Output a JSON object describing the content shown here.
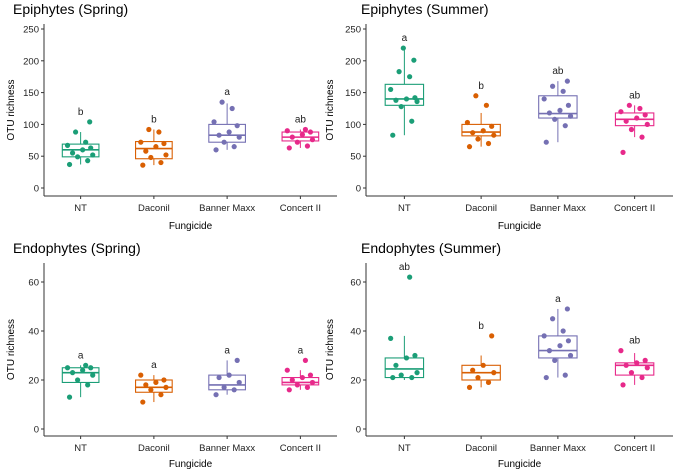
{
  "chart_data": [
    {
      "type": "boxplot",
      "title": "Epiphytes (Spring)",
      "xlabel": "Fungicide",
      "ylabel": "OTU richness",
      "ylim": [
        0,
        250
      ],
      "yticks": [
        0,
        50,
        100,
        150,
        200,
        250
      ],
      "categories": [
        "NT",
        "Daconil",
        "Banner  Maxx",
        "Concert  II"
      ],
      "boxes": [
        {
          "q1": 49,
          "median": 60,
          "q3": 69,
          "whisker_low": 37,
          "whisker_high": 88,
          "outliers": [],
          "letter": "b",
          "points": [
            37,
            43,
            49,
            52,
            55,
            60,
            63,
            67,
            72,
            88,
            104
          ]
        },
        {
          "q1": 46,
          "median": 62,
          "q3": 73,
          "whisker_low": 36,
          "whisker_high": 92,
          "outliers": [],
          "letter": "b",
          "points": [
            36,
            40,
            48,
            52,
            58,
            65,
            70,
            72,
            88,
            92
          ]
        },
        {
          "q1": 72,
          "median": 83,
          "q3": 100,
          "whisker_low": 60,
          "whisker_high": 133,
          "outliers": [],
          "letter": "a",
          "points": [
            60,
            65,
            72,
            80,
            83,
            88,
            98,
            104,
            125,
            135
          ]
        },
        {
          "q1": 74,
          "median": 80,
          "q3": 88,
          "whisker_low": 63,
          "whisker_high": 92,
          "outliers": [],
          "letter": "ab",
          "points": [
            63,
            66,
            72,
            76,
            80,
            84,
            88,
            90,
            92
          ]
        }
      ]
    },
    {
      "type": "boxplot",
      "title": "Epiphytes (Summer)",
      "xlabel": "Fungicide",
      "ylabel": "OTU richness",
      "ylim": [
        0,
        250
      ],
      "yticks": [
        0,
        50,
        100,
        150,
        200,
        250
      ],
      "categories": [
        "NT",
        "Daconil",
        "Banner  Maxx",
        "Concert  II"
      ],
      "boxes": [
        {
          "q1": 130,
          "median": 140,
          "q3": 163,
          "whisker_low": 83,
          "whisker_high": 220,
          "outliers": [],
          "letter": "a",
          "points": [
            83,
            105,
            128,
            136,
            138,
            140,
            142,
            155,
            175,
            183,
            201,
            220
          ]
        },
        {
          "q1": 82,
          "median": 88,
          "q3": 100,
          "whisker_low": 65,
          "whisker_high": 118,
          "outliers": [],
          "letter": "b",
          "points": [
            65,
            70,
            77,
            83,
            87,
            90,
            97,
            103,
            130,
            145
          ]
        },
        {
          "q1": 110,
          "median": 117,
          "q3": 145,
          "whisker_low": 72,
          "whisker_high": 168,
          "outliers": [],
          "letter": "ab",
          "points": [
            72,
            98,
            108,
            113,
            118,
            122,
            130,
            140,
            152,
            160,
            168
          ]
        },
        {
          "q1": 98,
          "median": 108,
          "q3": 118,
          "whisker_low": 80,
          "whisker_high": 130,
          "outliers": [],
          "letter": "ab",
          "points": [
            56,
            80,
            92,
            100,
            105,
            110,
            115,
            120,
            125,
            130
          ]
        }
      ]
    },
    {
      "type": "boxplot",
      "title": "Endophytes (Spring)",
      "xlabel": "Fungicide",
      "ylabel": "OTU richness",
      "ylim": [
        0,
        65
      ],
      "yticks": [
        0,
        20,
        40,
        60
      ],
      "categories": [
        "NT",
        "Daconil",
        "Banner  Maxx",
        "Concert  II"
      ],
      "boxes": [
        {
          "q1": 19,
          "median": 23,
          "q3": 25,
          "whisker_low": 13,
          "whisker_high": 26,
          "outliers": [],
          "letter": "a",
          "points": [
            13,
            18,
            20,
            22,
            23,
            24,
            25,
            25,
            26
          ]
        },
        {
          "q1": 15,
          "median": 17,
          "q3": 20,
          "whisker_low": 11,
          "whisker_high": 22,
          "outliers": [],
          "letter": "a",
          "points": [
            11,
            14,
            16,
            17,
            18,
            19,
            20,
            22
          ]
        },
        {
          "q1": 16,
          "median": 18,
          "q3": 22,
          "whisker_low": 14,
          "whisker_high": 28,
          "outliers": [],
          "letter": "a",
          "points": [
            14,
            16,
            17,
            19,
            21,
            22,
            28
          ]
        },
        {
          "q1": 18,
          "median": 19,
          "q3": 21,
          "whisker_low": 16,
          "whisker_high": 24,
          "outliers": [],
          "letter": "a",
          "points": [
            16,
            17,
            18,
            19,
            20,
            21,
            22,
            24,
            28
          ]
        }
      ]
    },
    {
      "type": "boxplot",
      "title": "Endophytes (Summer)",
      "xlabel": "Fungicide",
      "ylabel": "OTU richness",
      "ylim": [
        0,
        65
      ],
      "yticks": [
        0,
        20,
        40,
        60
      ],
      "categories": [
        "NT",
        "Daconil",
        "Banner  Maxx",
        "Concert  II"
      ],
      "boxes": [
        {
          "q1": 21,
          "median": 24.5,
          "q3": 29,
          "whisker_low": 20,
          "whisker_high": 38,
          "outliers": [],
          "letter": "ab",
          "points": [
            21,
            21,
            22,
            23,
            26,
            29,
            30,
            37,
            62
          ]
        },
        {
          "q1": 20,
          "median": 23,
          "q3": 26,
          "whisker_low": 17,
          "whisker_high": 30,
          "outliers": [],
          "letter": "b",
          "points": [
            17,
            19,
            21,
            23,
            24,
            26,
            38
          ]
        },
        {
          "q1": 29,
          "median": 32,
          "q3": 38,
          "whisker_low": 21,
          "whisker_high": 49,
          "outliers": [],
          "letter": "a",
          "points": [
            21,
            22,
            28,
            30,
            32,
            34,
            36,
            38,
            40,
            45,
            49
          ]
        },
        {
          "q1": 22,
          "median": 26,
          "q3": 27,
          "whisker_low": 18,
          "whisker_high": 31,
          "outliers": [],
          "letter": "ab",
          "points": [
            18,
            21,
            23,
            25,
            26,
            27,
            28,
            32
          ]
        }
      ]
    }
  ],
  "colors": [
    "#1b9e77",
    "#d95f02",
    "#7570b3",
    "#e7298a"
  ]
}
